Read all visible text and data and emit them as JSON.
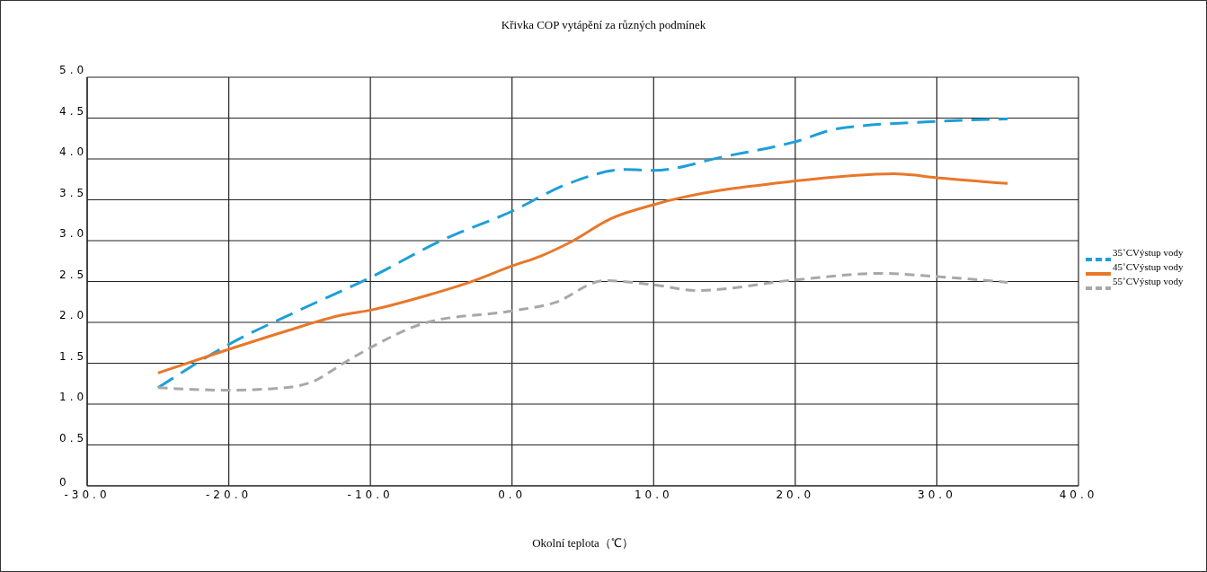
{
  "chart_data": {
    "type": "line",
    "title": "Křivka COP vytápění za různých podmínek",
    "xlabel": "Okolní teplota（℃）",
    "xlim": [
      -30,
      40
    ],
    "xticks": [
      {
        "value": -30,
        "label": "-30.0"
      },
      {
        "value": -20,
        "label": "-20.0"
      },
      {
        "value": -10,
        "label": "-10.0"
      },
      {
        "value": 0,
        "label": "0.0"
      },
      {
        "value": 10,
        "label": "10.0"
      },
      {
        "value": 20,
        "label": "20.0"
      },
      {
        "value": 30,
        "label": "30.0"
      },
      {
        "value": 40,
        "label": "40.0"
      }
    ],
    "ylim": [
      0,
      5
    ],
    "yticks": [
      0,
      {
        "value": 0.5,
        "label": "0.5"
      },
      {
        "value": 1,
        "label": "1.0"
      },
      {
        "value": 1.5,
        "label": "1.5"
      },
      {
        "value": 2,
        "label": "2.0"
      },
      {
        "value": 2.5,
        "label": "2.5"
      },
      {
        "value": 3,
        "label": "3.0"
      },
      {
        "value": 3.5,
        "label": "3.5"
      },
      {
        "value": 4,
        "label": "4.0"
      },
      {
        "value": 4.5,
        "label": "4.5"
      },
      {
        "value": 5,
        "label": "5.0"
      }
    ],
    "grid": true,
    "legend": "right",
    "marker": "none",
    "series": [
      {
        "name": "35˚CVýstup vody",
        "color": "#1e9fd8",
        "line_style": "dashed",
        "x": [
          -25,
          -20,
          -15,
          -10,
          -5,
          0,
          4,
          8,
          10,
          15,
          20,
          23,
          30,
          35
        ],
        "values": [
          1.2,
          1.73,
          2.15,
          2.55,
          3.0,
          3.36,
          3.7,
          3.87,
          3.86,
          4.03,
          4.21,
          4.37,
          4.46,
          4.49
        ]
      },
      {
        "name": "45˚CVýstup vody",
        "color": "#e8772a",
        "line_style": "solid",
        "x": [
          -25,
          -20,
          -16,
          -12,
          -10,
          -6,
          -3,
          0,
          2,
          4,
          7,
          10,
          20,
          27,
          30,
          35
        ],
        "values": [
          1.38,
          1.67,
          1.89,
          2.09,
          2.15,
          2.33,
          2.49,
          2.69,
          2.81,
          2.97,
          3.27,
          3.44,
          3.73,
          3.82,
          3.77,
          3.7
        ]
      },
      {
        "name": "55˚CVýstup vody",
        "color": "#a8a8a8",
        "line_style": "dashed",
        "x": [
          -25,
          -20,
          -16,
          -14,
          -12,
          -10,
          -6,
          0,
          3,
          6.5,
          10,
          13,
          20,
          26,
          30,
          35
        ],
        "values": [
          1.2,
          1.17,
          1.2,
          1.28,
          1.49,
          1.69,
          2.0,
          2.14,
          2.24,
          2.51,
          2.46,
          2.39,
          2.52,
          2.6,
          2.56,
          2.49
        ]
      }
    ]
  }
}
